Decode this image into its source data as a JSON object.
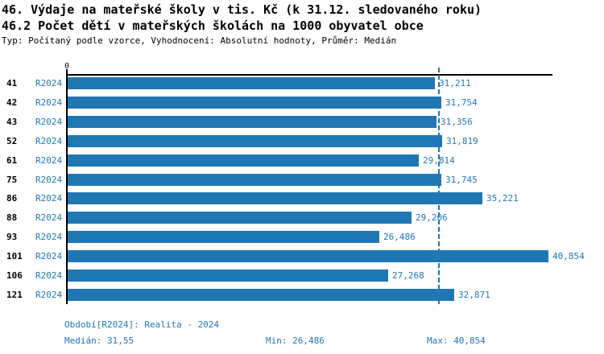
{
  "header": {
    "title_line1": "46. Výdaje na mateřské školy v tis. Kč (k 31.12. sledovaného roku)",
    "title_line2": "46.2 Počet dětí v mateřských školách na 1000 obyvatel obce",
    "subtitle": "Typ: Počítaný podle vzorce, Vyhodnocení: Absolutní hodnoty, Průměr: Medián"
  },
  "chart_data": {
    "type": "bar",
    "orientation": "horizontal",
    "title": "46. Výdaje na mateřské školy v tis. Kč (k 31.12. sledovaného roku)",
    "subtitle": "46.2 Počet dětí v mateřských školách na 1000 obyvatel obce",
    "categories": [
      "41",
      "42",
      "43",
      "52",
      "61",
      "75",
      "86",
      "88",
      "93",
      "101",
      "106",
      "121"
    ],
    "series": [
      {
        "name": "R2024",
        "values": [
          31.211,
          31.754,
          31.356,
          31.819,
          29.814,
          31.745,
          35.221,
          29.206,
          26.486,
          40.854,
          27.268,
          32.871
        ],
        "value_labels": [
          "31,211",
          "31,754",
          "31,356",
          "31,819",
          "29,814",
          "31,745",
          "35,221",
          "29,206",
          "26,486",
          "40,854",
          "27,268",
          "32,871"
        ]
      }
    ],
    "xlim": [
      0,
      41.2
    ],
    "x_zero_tick_label": "0",
    "median_value": 31.5505,
    "median_line": true,
    "grid": false,
    "legend_position": "none",
    "bar_color": "#1f77b4"
  },
  "footer": {
    "period": "Období[R2024]: Realita - 2024",
    "median_label": "Medián:",
    "median_value": "31,55",
    "min_label": "Min:",
    "min_value": "26,486",
    "max_label": "Max:",
    "max_value": "40,854"
  },
  "colors": {
    "bar": "#1f77b4",
    "accent_text": "#1f77b4",
    "axis": "#000000",
    "background": "#ffffff"
  }
}
